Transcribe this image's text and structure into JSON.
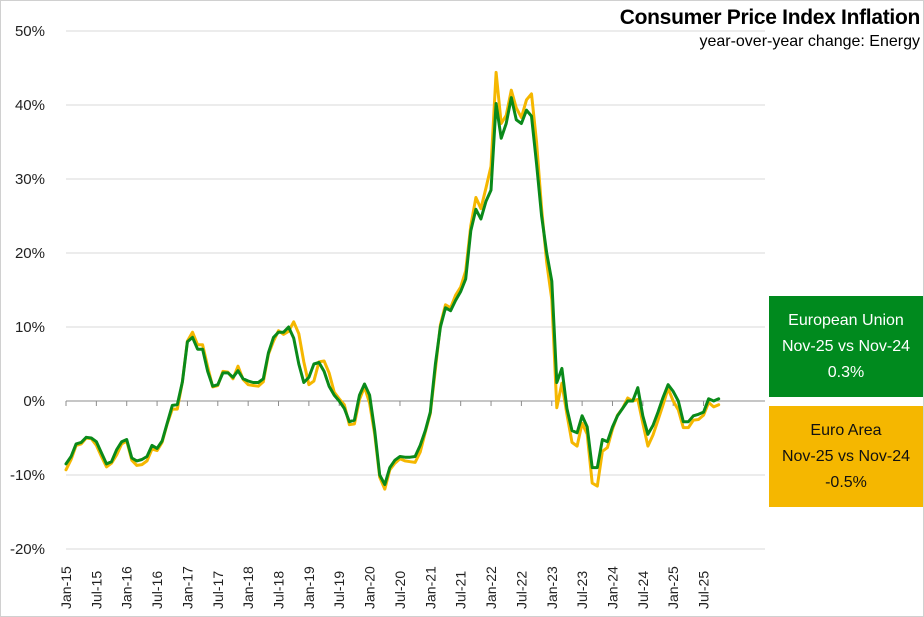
{
  "title": "Consumer Price Index Inflation",
  "subtitle": "year-over-year  change: Energy",
  "colors": {
    "eu": "#0a8a1a",
    "ea": "#f5b700"
  },
  "callouts": {
    "eu": {
      "line1": "European Union",
      "line2": "Nov-25 vs Nov-24",
      "line3": "0.3%"
    },
    "ea": {
      "line1": "Euro Area",
      "line2": "Nov-25 vs Nov-24",
      "line3": "-0.5%"
    }
  },
  "chart_data": {
    "type": "line",
    "title": "Consumer Price Index Inflation",
    "subtitle": "year-over-year  change: Energy",
    "ylim": [
      -20,
      50
    ],
    "yticks": [
      -20,
      -10,
      0,
      10,
      20,
      30,
      40,
      50
    ],
    "ytick_labels": [
      "-20%",
      "-10%",
      "0%",
      "10%",
      "20%",
      "30%",
      "40%",
      "50%"
    ],
    "xtick_labels": [
      "Jan-15",
      "Jul-15",
      "Jan-16",
      "Jul-16",
      "Jan-17",
      "Jul-17",
      "Jan-18",
      "Jul-18",
      "Jan-19",
      "Jul-19",
      "Jan-20",
      "Jul-20",
      "Jan-21",
      "Jul-21",
      "Jan-22",
      "Jul-22",
      "Jan-23",
      "Jul-23",
      "Jan-24",
      "Jul-24",
      "Jan-25",
      "Jul-25"
    ],
    "x_start": "Jan-15",
    "x_end": "Nov-25",
    "grid": true,
    "series": [
      {
        "name": "European Union",
        "color": "#0a8a1a",
        "values": [
          -8.5,
          -7.5,
          -5.8,
          -5.6,
          -4.9,
          -5.0,
          -5.5,
          -7.0,
          -8.5,
          -8.2,
          -6.6,
          -5.5,
          -5.2,
          -7.7,
          -8.1,
          -7.9,
          -7.5,
          -6.0,
          -6.4,
          -5.4,
          -3.0,
          -0.6,
          -0.5,
          2.6,
          8.0,
          8.6,
          7.0,
          7.0,
          4.0,
          2.0,
          2.2,
          3.8,
          3.8,
          3.2,
          4.1,
          3.0,
          2.7,
          2.5,
          2.5,
          3.0,
          6.5,
          8.6,
          9.3,
          9.3,
          10.0,
          8.5,
          5.0,
          2.5,
          3.2,
          5.0,
          5.2,
          4.0,
          2.0,
          0.8,
          0.0,
          -1.0,
          -2.8,
          -2.6,
          0.8,
          2.3,
          0.8,
          -4.0,
          -10.0,
          -11.3,
          -9.0,
          -8.0,
          -7.5,
          -7.6,
          -7.6,
          -7.5,
          -6.0,
          -4.0,
          -1.5,
          5.0,
          10.0,
          12.6,
          12.2,
          13.6,
          14.8,
          16.5,
          23.0,
          25.9,
          24.6,
          27.0,
          28.5,
          40.2,
          35.5,
          37.5,
          41.0,
          38.0,
          37.5,
          39.3,
          38.5,
          32.0,
          25.0,
          20.0,
          16.2,
          2.5,
          4.4,
          -1.0,
          -4.0,
          -4.3,
          -2.0,
          -3.5,
          -9.0,
          -9.0,
          -5.2,
          -5.5,
          -3.5,
          -2.0,
          -1.0,
          0.0,
          0.0,
          1.8,
          -2.0,
          -4.5,
          -3.3,
          -1.5,
          0.5,
          2.2,
          1.3,
          0.0,
          -2.8,
          -2.8,
          -2.0,
          -1.8,
          -1.5,
          0.3,
          0.0,
          0.3
        ]
      },
      {
        "name": "Euro Area",
        "color": "#f5b700",
        "values": [
          -9.3,
          -7.9,
          -6.0,
          -5.8,
          -5.0,
          -5.1,
          -6.0,
          -7.5,
          -8.9,
          -8.4,
          -7.3,
          -5.8,
          -5.4,
          -8.0,
          -8.7,
          -8.6,
          -8.1,
          -6.5,
          -6.7,
          -5.6,
          -3.1,
          -1.1,
          -1.1,
          2.6,
          8.1,
          9.3,
          7.6,
          7.6,
          4.6,
          1.9,
          2.1,
          4.0,
          3.9,
          3.0,
          4.7,
          2.9,
          2.2,
          2.1,
          2.0,
          2.6,
          6.3,
          8.1,
          9.5,
          9.0,
          9.4,
          10.7,
          9.1,
          5.3,
          2.2,
          2.7,
          5.3,
          5.4,
          3.8,
          1.2,
          0.3,
          -0.5,
          -3.2,
          -3.1,
          0.2,
          1.9,
          -0.3,
          -4.5,
          -10.3,
          -11.9,
          -9.3,
          -8.4,
          -7.8,
          -8.1,
          -8.2,
          -8.3,
          -6.9,
          -4.2,
          -1.7,
          4.3,
          10.3,
          13.0,
          12.6,
          14.3,
          15.4,
          17.6,
          23.7,
          27.5,
          26.0,
          28.8,
          31.7,
          44.4,
          37.5,
          38.6,
          42.0,
          39.6,
          38.3,
          40.7,
          41.5,
          34.9,
          26.0,
          18.7,
          13.7,
          -0.9,
          2.4,
          -1.8,
          -5.6,
          -6.1,
          -3.0,
          -4.5,
          -11.1,
          -11.5,
          -6.8,
          -6.3,
          -3.8,
          -1.9,
          -1.0,
          0.4,
          0.0,
          0.2,
          -3.0,
          -6.1,
          -4.6,
          -2.6,
          -0.5,
          1.7,
          0.0,
          -1.2,
          -3.6,
          -3.6,
          -2.6,
          -2.5,
          -1.9,
          -0.2,
          -0.8,
          -0.5
        ]
      }
    ]
  }
}
